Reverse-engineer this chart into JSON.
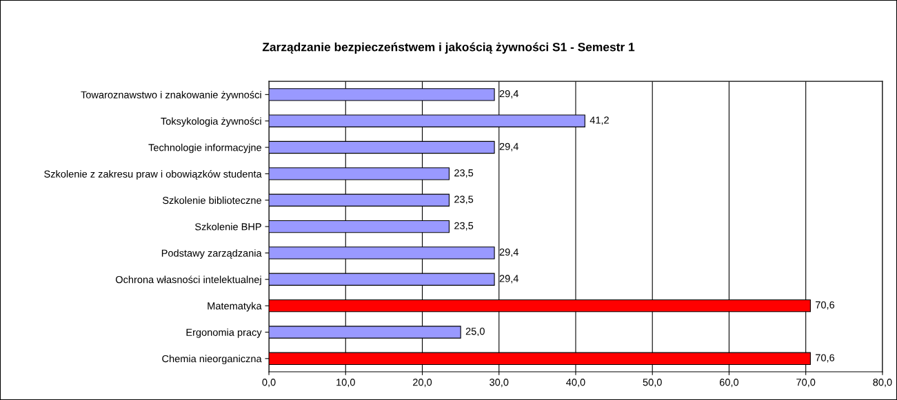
{
  "chart_data": {
    "type": "bar",
    "orientation": "horizontal",
    "title": "Zarządzanie bezpieczeństwem i jakością żywności S1 - Semestr 1",
    "categories": [
      "Towaroznawstwo i znakowanie żywności",
      "Toksykologia żywności",
      "Technologie informacyjne",
      "Szkolenie z zakresu praw i obowiązków studenta",
      "Szkolenie biblioteczne",
      "Szkolenie BHP",
      "Podstawy zarządzania",
      "Ochrona własności intelektualnej",
      "Matematyka",
      "Ergonomia pracy",
      "Chemia nieorganiczna"
    ],
    "values": [
      29.4,
      41.2,
      29.4,
      23.5,
      23.5,
      23.5,
      29.4,
      29.4,
      70.6,
      25.0,
      70.6
    ],
    "colors": [
      "#9999ff",
      "#9999ff",
      "#9999ff",
      "#9999ff",
      "#9999ff",
      "#9999ff",
      "#9999ff",
      "#9999ff",
      "#ff0000",
      "#9999ff",
      "#ff0000"
    ],
    "value_labels": [
      "29,4",
      "41,2",
      "29,4",
      "23,5",
      "23,5",
      "23,5",
      "29,4",
      "29,4",
      "70,6",
      "25,0",
      "70,6"
    ],
    "xlim": [
      0,
      80
    ],
    "xticks": [
      {
        "value": 0,
        "label": "0,0"
      },
      {
        "value": 10,
        "label": "10,0"
      },
      {
        "value": 20,
        "label": "20,0"
      },
      {
        "value": 30,
        "label": "30,0"
      },
      {
        "value": 40,
        "label": "40,0"
      },
      {
        "value": 50,
        "label": "50,0"
      },
      {
        "value": 60,
        "label": "60,0"
      },
      {
        "value": 70,
        "label": "70,0"
      },
      {
        "value": 80,
        "label": "80,0"
      }
    ],
    "grid": "x"
  }
}
